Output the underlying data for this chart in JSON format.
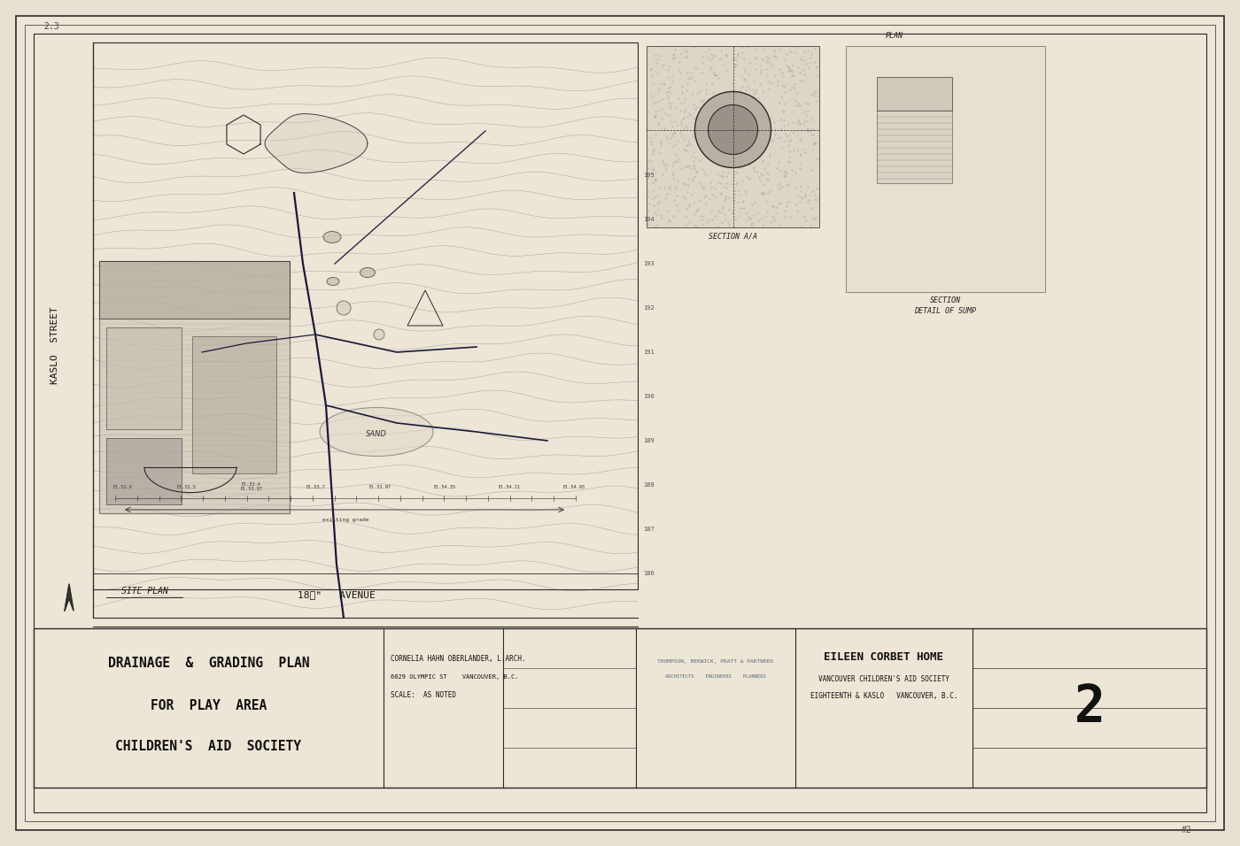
{
  "bg_color": "#e8e0d0",
  "paper_color": "#ede5d5",
  "line_color": "#2a2a2a",
  "title_lines": [
    "DRAINAGE  &  GRADING  PLAN",
    "FOR  PLAY  AREA",
    "CHILDREN'S  AID  SOCIETY"
  ],
  "arch_name": "CORNELIA HAHN OBERLANDER, L.ARCH.",
  "arch_address": "6029 OLYMPIC ST    VANCOUVER, B.C.",
  "arch_scale": "SCALE:  AS NOTED",
  "firm_name": "THOMPSON, BERWICK, PRATT & PARTNERS",
  "firm_sub": "ARCHITECTS    ENGINEERS    PLANNERS",
  "project_name": "EILEEN CORBET HOME",
  "project_sub1": "VANCOUVER CHILDREN'S AID SOCIETY",
  "project_sub2": "EIGHTEENTH & KASLO   VANCOUVER, B.C.",
  "sheet_number": "2",
  "street_label": "KASLO  STREET",
  "avenue_label": "18ᴛᴴ   AVENUE",
  "site_plan_label": "SITE PLAN"
}
